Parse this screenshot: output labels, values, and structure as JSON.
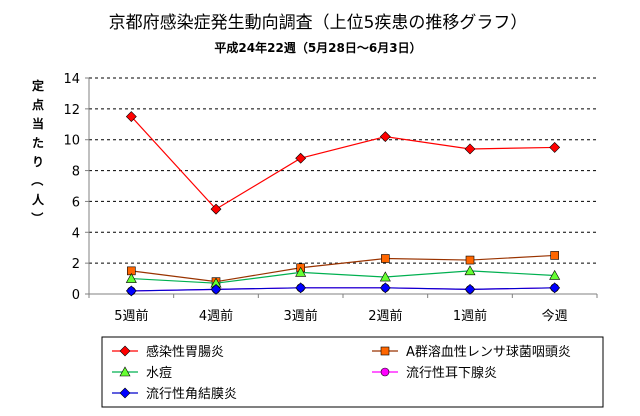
{
  "chart_data": {
    "type": "line",
    "title": "京都府感染症発生動向調査（上位5疾患の推移グラフ）",
    "subtitle": "平成24年22週（5月28日～6月3日）",
    "ylabel": "定点当たり（人）",
    "xlabel": "",
    "categories": [
      "5週前",
      "4週前",
      "3週前",
      "2週前",
      "1週前",
      "今週"
    ],
    "ylim": [
      0,
      14
    ],
    "yticks": [
      0,
      2,
      4,
      6,
      8,
      10,
      12,
      14
    ],
    "grid": true,
    "legend_position": "bottom",
    "series": [
      {
        "name": "感染性胃腸炎",
        "values": [
          11.5,
          5.5,
          8.8,
          10.2,
          9.4,
          9.5
        ],
        "color": "#ff0000",
        "marker": "diamond",
        "marker_color": "#ff0000"
      },
      {
        "name": "A群溶血性レンサ球菌咽頭炎",
        "values": [
          1.5,
          0.8,
          1.7,
          2.3,
          2.2,
          2.5
        ],
        "color": "#993300",
        "marker": "square",
        "marker_color": "#ff6600"
      },
      {
        "name": "水痘",
        "values": [
          1.0,
          0.7,
          1.4,
          1.1,
          1.5,
          1.2
        ],
        "color": "#00b050",
        "marker": "triangle",
        "marker_color": "#66ff33"
      },
      {
        "name": "流行性耳下腺炎",
        "values": [
          0.2,
          0.3,
          0.4,
          0.4,
          0.3,
          0.4
        ],
        "color": "#ff00ff",
        "marker": "circle",
        "marker_color": "#ff00ff"
      },
      {
        "name": "流行性角結膜炎",
        "values": [
          0.2,
          0.3,
          0.4,
          0.4,
          0.3,
          0.4
        ],
        "color": "#0000cc",
        "marker": "diamond",
        "marker_color": "#0000ff"
      }
    ]
  }
}
